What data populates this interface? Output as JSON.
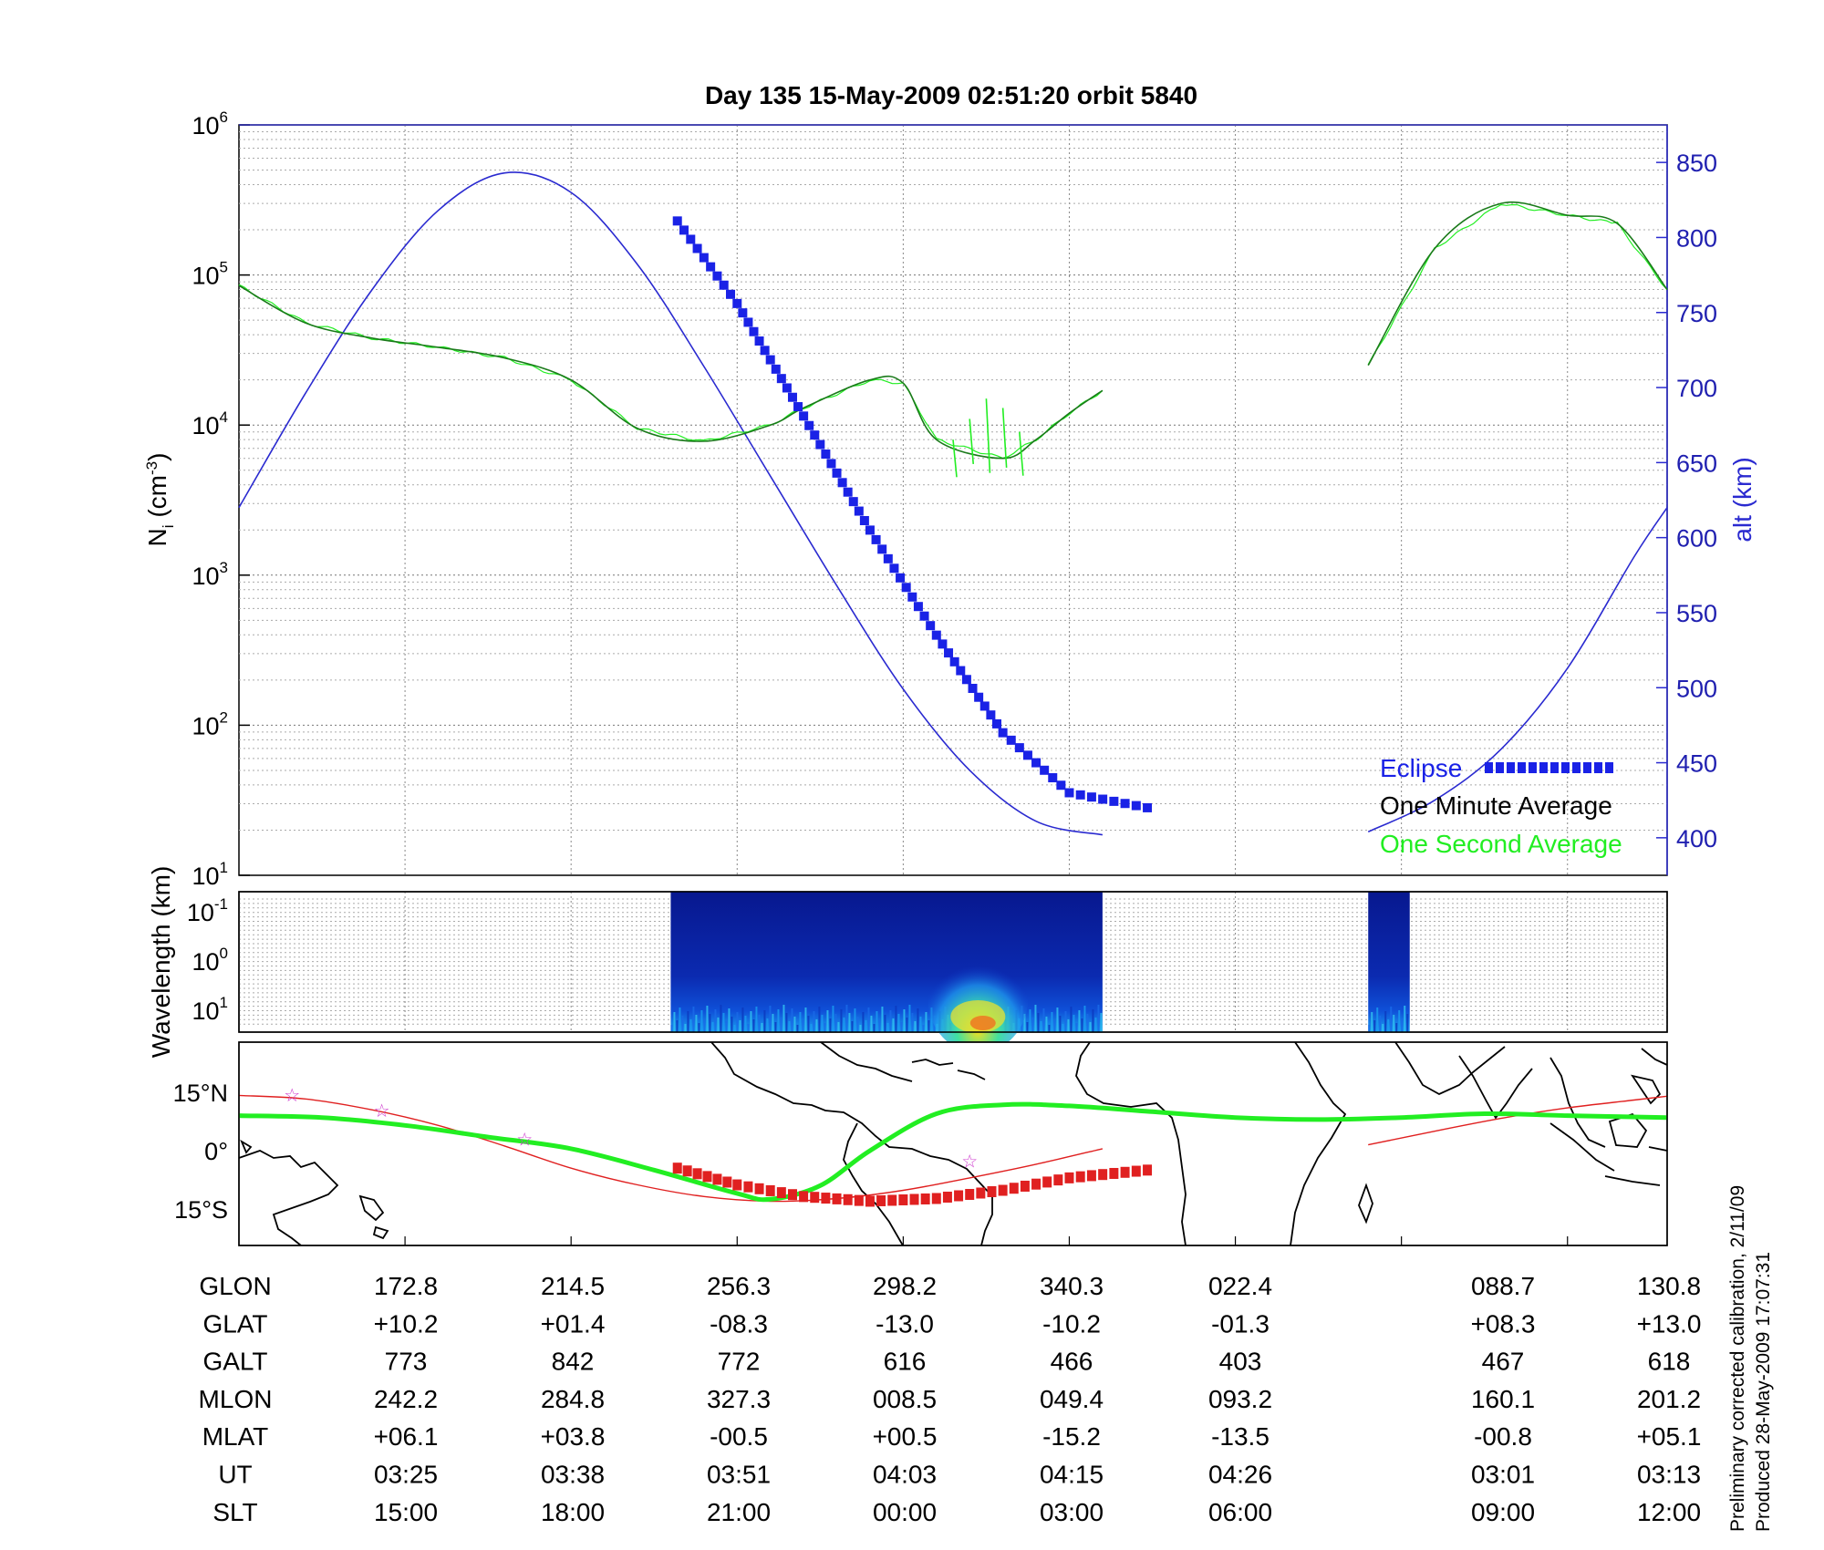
{
  "title": "Day 135  15-May-2009 02:51:20   orbit 5840",
  "colors": {
    "altitude": "#2a2ad0",
    "eclipse": "#1a22e6",
    "one_minute": "#1a7a1a",
    "one_second": "#22ee22",
    "track_red": "#e02020",
    "track_green": "#22ee22",
    "spectrogram_bg": "#0a1a9a",
    "stars": "#d040d0"
  },
  "chart_data": [
    {
      "type": "line",
      "panel": "density",
      "ylabel_left": "N",
      "ylabel_left_sub": "i",
      "ylabel_left_unit": "(cm",
      "ylabel_left_unit_sup": "-3",
      "ylabel_right": "alt (km)",
      "yscale_left": "log",
      "ylim_left": [
        10,
        1000000
      ],
      "left_ticks": [
        {
          "base": "10",
          "exp": "1"
        },
        {
          "base": "10",
          "exp": "2"
        },
        {
          "base": "10",
          "exp": "3"
        },
        {
          "base": "10",
          "exp": "4"
        },
        {
          "base": "10",
          "exp": "5"
        },
        {
          "base": "10",
          "exp": "6"
        }
      ],
      "ylim_right": [
        375,
        875
      ],
      "right_ticks": [
        "400",
        "450",
        "500",
        "550",
        "600",
        "650",
        "700",
        "750",
        "800",
        "850"
      ],
      "x_index_range": [
        0,
        8.6
      ],
      "gap": [
        5.2,
        6.8
      ],
      "grid": true,
      "legend_position": "bottom-right",
      "legend": [
        {
          "label": "Eclipse",
          "color": "#1a22e6"
        },
        {
          "label": "One Minute Average",
          "color": "#000000"
        },
        {
          "label": "One Second Average",
          "color": "#22ee22"
        }
      ],
      "series": [
        {
          "name": "alt (km)",
          "axis": "right",
          "x": [
            0,
            0.4,
            0.8,
            1.2,
            1.6,
            2.0,
            2.4,
            2.8,
            3.2,
            3.6,
            4.0,
            4.4,
            4.8,
            5.2
          ],
          "y": [
            620,
            696,
            765,
            818,
            843,
            830,
            782,
            714,
            641,
            568,
            499,
            445,
            411,
            402
          ]
        },
        {
          "name": "alt (km)",
          "axis": "right",
          "x": [
            6.8,
            7.2,
            7.6,
            8.0,
            8.4,
            8.6
          ],
          "y": [
            404,
            425,
            459,
            513,
            587,
            620
          ]
        },
        {
          "name": "eclipse",
          "axis": "right",
          "x": [
            2.64,
            3.0,
            3.4,
            3.8,
            4.2,
            4.6,
            5.0,
            5.47
          ],
          "y": [
            811,
            756,
            681,
            605,
            535,
            470,
            430,
            420
          ]
        },
        {
          "name": "One Minute Average",
          "axis": "left",
          "x": [
            0,
            0.4,
            0.8,
            1.2,
            1.6,
            2.0,
            2.4,
            2.8,
            3.2,
            3.4,
            3.8,
            4.0,
            4.2,
            4.6,
            4.8,
            5.0,
            5.2
          ],
          "y": [
            85000,
            48000,
            38000,
            33000,
            28000,
            20000,
            9500,
            7800,
            10000,
            13000,
            20000,
            19000,
            8000,
            6000,
            8000,
            12000,
            17000
          ]
        },
        {
          "name": "One Minute Average",
          "axis": "left",
          "x": [
            6.8,
            7.2,
            7.6,
            8.0,
            8.3,
            8.6
          ],
          "y": [
            25000,
            150000,
            300000,
            250000,
            220000,
            80000
          ]
        }
      ]
    },
    {
      "type": "heatmap",
      "panel": "spectrogram",
      "ylabel": "Wavelength (km)",
      "yscale": "log",
      "y_ticks": [
        {
          "base": "10",
          "exp": "-1"
        },
        {
          "base": "10",
          "exp": "0"
        },
        {
          "base": "10",
          "exp": "1"
        }
      ],
      "data_spans": [
        [
          2.6,
          5.2
        ],
        [
          6.8,
          7.05
        ]
      ]
    },
    {
      "type": "line",
      "panel": "map",
      "yticks": [
        "15°N",
        "0°",
        "15°S"
      ],
      "series": [
        {
          "name": "orbit track",
          "x": [
            0,
            0.4,
            0.8,
            1.2,
            1.6,
            2.0,
            2.4,
            2.8,
            3.2,
            3.6,
            4.0,
            4.4,
            4.8,
            5.2
          ],
          "y": [
            14.2,
            13.3,
            10.5,
            6.5,
            1.2,
            -4.5,
            -8.8,
            -11.8,
            -13.0,
            -12.3,
            -10.2,
            -7.0,
            -3.5,
            0.5
          ]
        },
        {
          "name": "orbit track",
          "x": [
            6.8,
            7.2,
            7.6,
            8.0,
            8.4,
            8.6
          ],
          "y": [
            1.5,
            5.0,
            8.3,
            11.0,
            13.0,
            14.0
          ]
        },
        {
          "name": "magnetic equator",
          "x": [
            0,
            0.5,
            1.0,
            1.5,
            2.0,
            2.5,
            3.0,
            3.2,
            3.5,
            3.8,
            4.2,
            4.6,
            5.0,
            5.5,
            6.0,
            6.5,
            7.0,
            7.5,
            8.0,
            8.6
          ],
          "y": [
            9.0,
            8.5,
            6.5,
            3.5,
            0.5,
            -5.0,
            -11.0,
            -12.5,
            -9.0,
            0.0,
            9.5,
            11.8,
            11.5,
            10.0,
            8.5,
            8.0,
            8.5,
            9.5,
            9.0,
            8.5
          ]
        },
        {
          "name": "eclipse",
          "x": [
            2.64,
            3.0,
            3.4,
            3.8,
            4.2,
            4.6,
            5.0,
            5.47
          ],
          "y": [
            -4.5,
            -8.8,
            -11.8,
            -13.0,
            -12.3,
            -10.2,
            -7.0,
            -5.0
          ]
        }
      ],
      "stars": [
        {
          "x": 0.32,
          "y": 14.5
        },
        {
          "x": 0.86,
          "y": 10.5
        },
        {
          "x": 1.72,
          "y": 3.2
        },
        {
          "x": 4.4,
          "y": -2.5
        }
      ]
    }
  ],
  "table": {
    "row_labels": [
      "GLON",
      "GLAT",
      "GALT",
      "MLON",
      "MLAT",
      "UT",
      "SLT"
    ],
    "columns": [
      {
        "values": [
          "172.8",
          "+10.2",
          "773",
          "242.2",
          "+06.1",
          "03:25",
          "15:00"
        ]
      },
      {
        "values": [
          "214.5",
          "+01.4",
          "842",
          "284.8",
          "+03.8",
          "03:38",
          "18:00"
        ]
      },
      {
        "values": [
          "256.3",
          "-08.3",
          "772",
          "327.3",
          "-00.5",
          "03:51",
          "21:00"
        ]
      },
      {
        "values": [
          "298.2",
          "-13.0",
          "616",
          "008.5",
          "+00.5",
          "04:03",
          "00:00"
        ]
      },
      {
        "values": [
          "340.3",
          "-10.2",
          "466",
          "049.4",
          "-15.2",
          "04:15",
          "03:00"
        ]
      },
      {
        "values": [
          "022.4",
          "-01.3",
          "403",
          "093.2",
          "-13.5",
          "04:26",
          "06:00"
        ]
      },
      {
        "values": [
          "088.7",
          "+08.3",
          "467",
          "160.1",
          "-00.8",
          "03:01",
          "09:00"
        ]
      },
      {
        "values": [
          "130.8",
          "+13.0",
          "618",
          "201.2",
          "+05.1",
          "03:13",
          "12:00"
        ]
      }
    ]
  },
  "footnote": {
    "line1": "Preliminary corrected calibration, 2/11/09",
    "line2": "Produced 28-May-2009 17:07:31"
  }
}
